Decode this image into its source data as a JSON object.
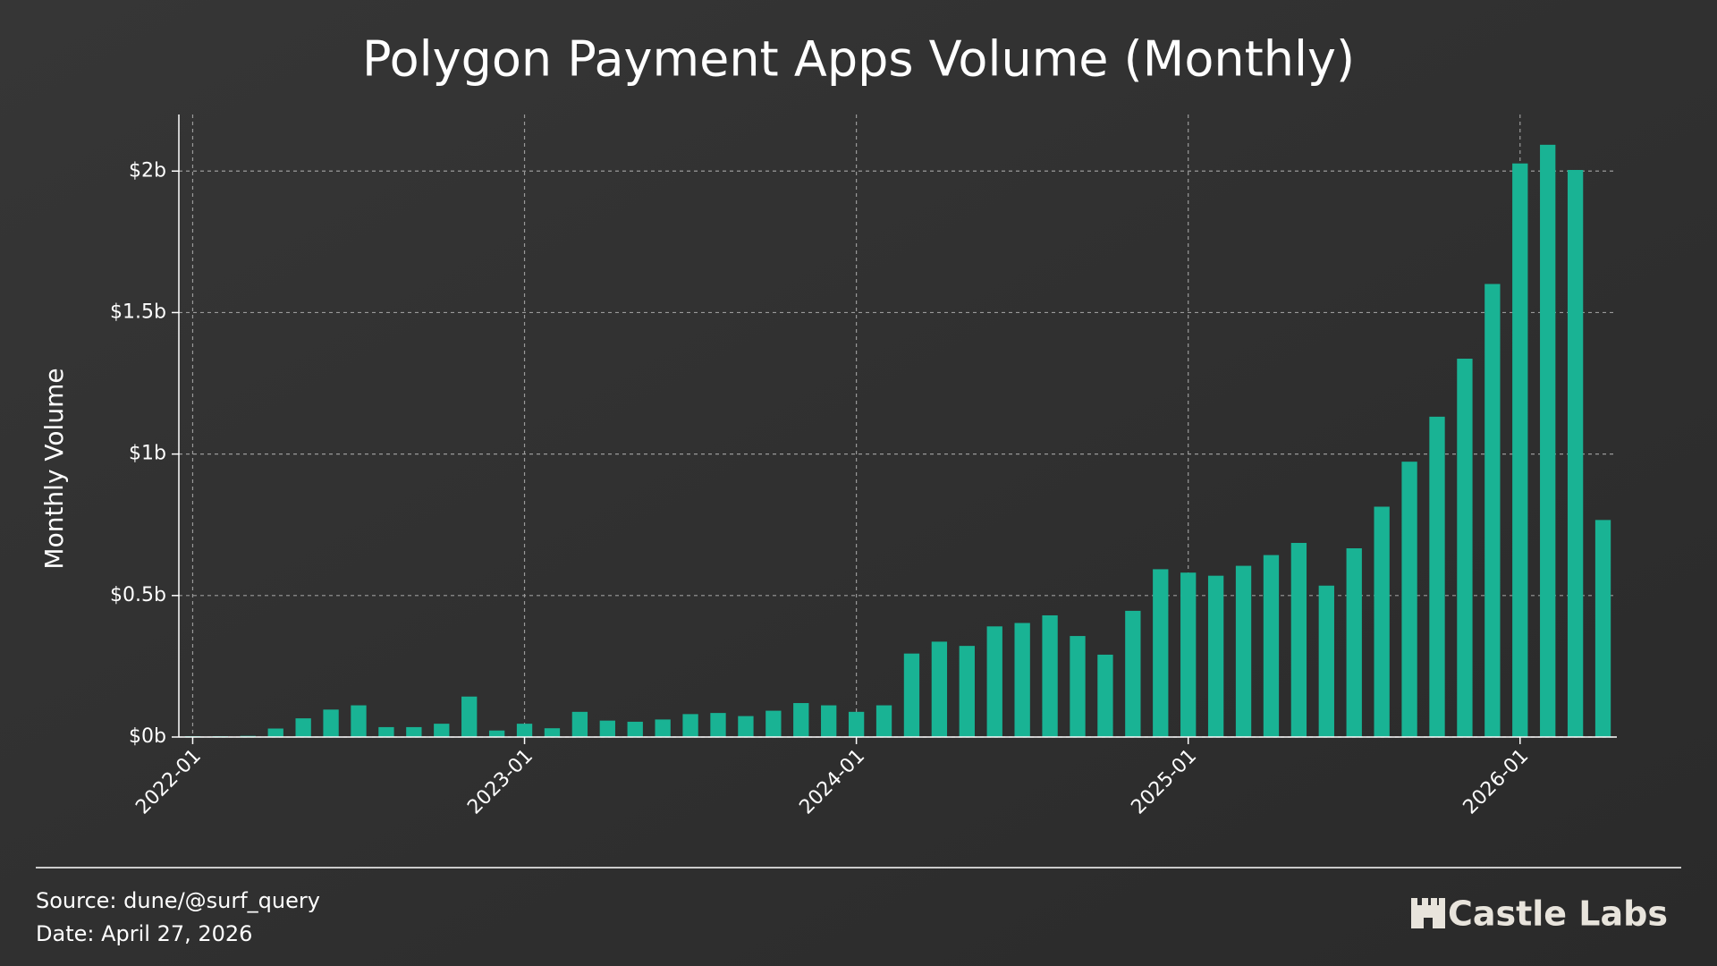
{
  "chart_data": {
    "type": "bar",
    "title": "Polygon Payment Apps Volume (Monthly)",
    "y_label": "Monthly Volume",
    "categories": [
      "2022-01",
      null,
      null,
      null,
      null,
      null,
      null,
      null,
      null,
      null,
      null,
      null,
      "2023-01",
      null,
      null,
      null,
      null,
      null,
      null,
      null,
      null,
      null,
      null,
      null,
      "2024-01",
      null,
      null,
      null,
      null,
      null,
      null,
      null,
      null,
      null,
      null,
      null,
      "2025-01",
      null,
      null,
      null,
      null,
      null,
      null,
      null,
      null,
      null,
      null,
      null,
      "2026-01",
      null,
      null,
      null
    ],
    "values": [
      0.003,
      0.003,
      0.004,
      0.03,
      0.066,
      0.097,
      0.112,
      0.035,
      0.035,
      0.047,
      0.143,
      0.023,
      0.047,
      0.031,
      0.089,
      0.058,
      0.054,
      0.062,
      0.081,
      0.085,
      0.074,
      0.093,
      0.12,
      0.112,
      0.089,
      0.112,
      0.295,
      0.337,
      0.322,
      0.391,
      0.403,
      0.43,
      0.357,
      0.291,
      0.446,
      0.593,
      0.581,
      0.57,
      0.605,
      0.643,
      0.686,
      0.535,
      0.667,
      0.814,
      0.973,
      1.132,
      1.337,
      1.601,
      2.027,
      2.093,
      2.004,
      0.767
    ],
    "color": "#19b394",
    "ylim": [
      0,
      2.2
    ],
    "yticks": [
      {
        "value": 0,
        "label": "$0b"
      },
      {
        "value": 0.5,
        "label": "$0.5b"
      },
      {
        "value": 1,
        "label": "$1b"
      },
      {
        "value": 1.5,
        "label": "$1.5b"
      },
      {
        "value": 2,
        "label": "$2b"
      }
    ],
    "grid": true,
    "source": "Source: dune/@surf_query",
    "date": "Date: April 27, 2026",
    "brand": "Castle Labs"
  }
}
